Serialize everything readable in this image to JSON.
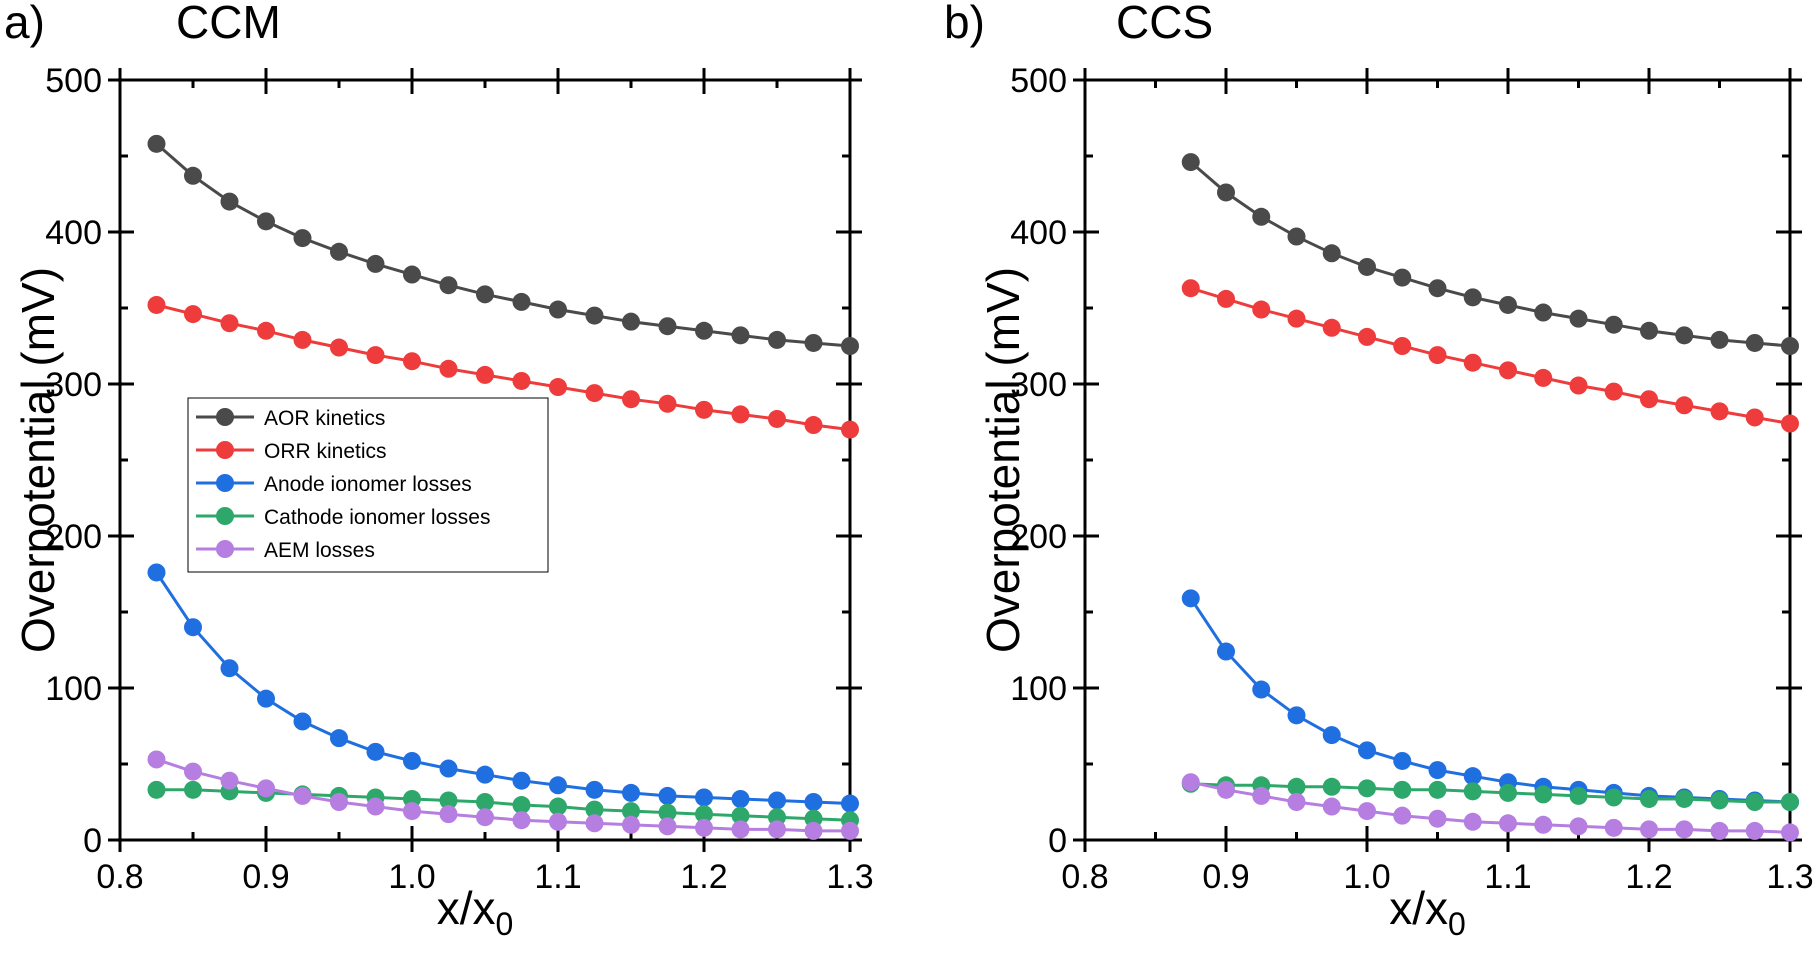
{
  "chart_data": [
    {
      "type": "line",
      "panel_label": "a)",
      "title": "CCM",
      "xlabel": "x/x",
      "xlabel_sub": "0",
      "ylabel": "Overpotential (mV)",
      "xlim": [
        0.8,
        1.3
      ],
      "ylim": [
        0,
        500
      ],
      "xticks": [
        "0.8",
        "0.9",
        "1.0",
        "1.1",
        "1.2",
        "1.3"
      ],
      "yticks": [
        "0",
        "100",
        "200",
        "300",
        "400",
        "500"
      ],
      "legend": "center-left",
      "x": [
        0.825,
        0.85,
        0.875,
        0.9,
        0.925,
        0.95,
        0.975,
        1.0,
        1.025,
        1.05,
        1.075,
        1.1,
        1.125,
        1.15,
        1.175,
        1.2,
        1.225,
        1.25,
        1.275,
        1.3
      ],
      "series": [
        {
          "name": "AOR kinetics",
          "color": "#4a4a4a",
          "values": [
            458,
            437,
            420,
            407,
            396,
            387,
            379,
            372,
            365,
            359,
            354,
            349,
            345,
            341,
            338,
            335,
            332,
            329,
            327,
            325
          ]
        },
        {
          "name": "ORR kinetics",
          "color": "#ee3b3b",
          "values": [
            352,
            346,
            340,
            335,
            329,
            324,
            319,
            315,
            310,
            306,
            302,
            298,
            294,
            290,
            287,
            283,
            280,
            277,
            273,
            270
          ]
        },
        {
          "name": "Anode ionomer losses",
          "color": "#1f6fe0",
          "values": [
            176,
            140,
            113,
            93,
            78,
            67,
            58,
            52,
            47,
            43,
            39,
            36,
            33,
            31,
            29,
            28,
            27,
            26,
            25,
            24
          ]
        },
        {
          "name": "Cathode ionomer losses",
          "color": "#2ea86a",
          "values": [
            33,
            33,
            32,
            31,
            30,
            29,
            28,
            27,
            26,
            25,
            23,
            22,
            20,
            19,
            18,
            17,
            16,
            15,
            14,
            13
          ]
        },
        {
          "name": "AEM losses",
          "color": "#b57ee0",
          "values": [
            53,
            45,
            39,
            34,
            29,
            25,
            22,
            19,
            17,
            15,
            13,
            12,
            11,
            10,
            9,
            8,
            7,
            7,
            6,
            6
          ]
        }
      ]
    },
    {
      "type": "line",
      "panel_label": "b)",
      "title": "CCS",
      "xlabel": "x/x",
      "xlabel_sub": "0",
      "ylabel": "Overpotential (mV)",
      "xlim": [
        0.8,
        1.3
      ],
      "ylim": [
        0,
        500
      ],
      "xticks": [
        "0.8",
        "0.9",
        "1.0",
        "1.1",
        "1.2",
        "1.3"
      ],
      "yticks": [
        "0",
        "100",
        "200",
        "300",
        "400",
        "500"
      ],
      "x": [
        0.875,
        0.9,
        0.925,
        0.95,
        0.975,
        1.0,
        1.025,
        1.05,
        1.075,
        1.1,
        1.125,
        1.15,
        1.175,
        1.2,
        1.225,
        1.25,
        1.275,
        1.3
      ],
      "series": [
        {
          "name": "AOR kinetics",
          "color": "#4a4a4a",
          "values": [
            446,
            426,
            410,
            397,
            386,
            377,
            370,
            363,
            357,
            352,
            347,
            343,
            339,
            335,
            332,
            329,
            327,
            325
          ]
        },
        {
          "name": "ORR kinetics",
          "color": "#ee3b3b",
          "values": [
            363,
            356,
            349,
            343,
            337,
            331,
            325,
            319,
            314,
            309,
            304,
            299,
            295,
            290,
            286,
            282,
            278,
            274
          ]
        },
        {
          "name": "Anode ionomer losses",
          "color": "#1f6fe0",
          "values": [
            159,
            124,
            99,
            82,
            69,
            59,
            52,
            46,
            42,
            38,
            35,
            33,
            31,
            29,
            28,
            27,
            26,
            25
          ]
        },
        {
          "name": "Cathode ionomer losses",
          "color": "#2ea86a",
          "values": [
            37,
            36,
            36,
            35,
            35,
            34,
            33,
            33,
            32,
            31,
            30,
            29,
            28,
            27,
            27,
            26,
            25,
            25
          ]
        },
        {
          "name": "AEM losses",
          "color": "#b57ee0",
          "values": [
            38,
            33,
            29,
            25,
            22,
            19,
            16,
            14,
            12,
            11,
            10,
            9,
            8,
            7,
            7,
            6,
            6,
            5
          ]
        }
      ]
    }
  ]
}
